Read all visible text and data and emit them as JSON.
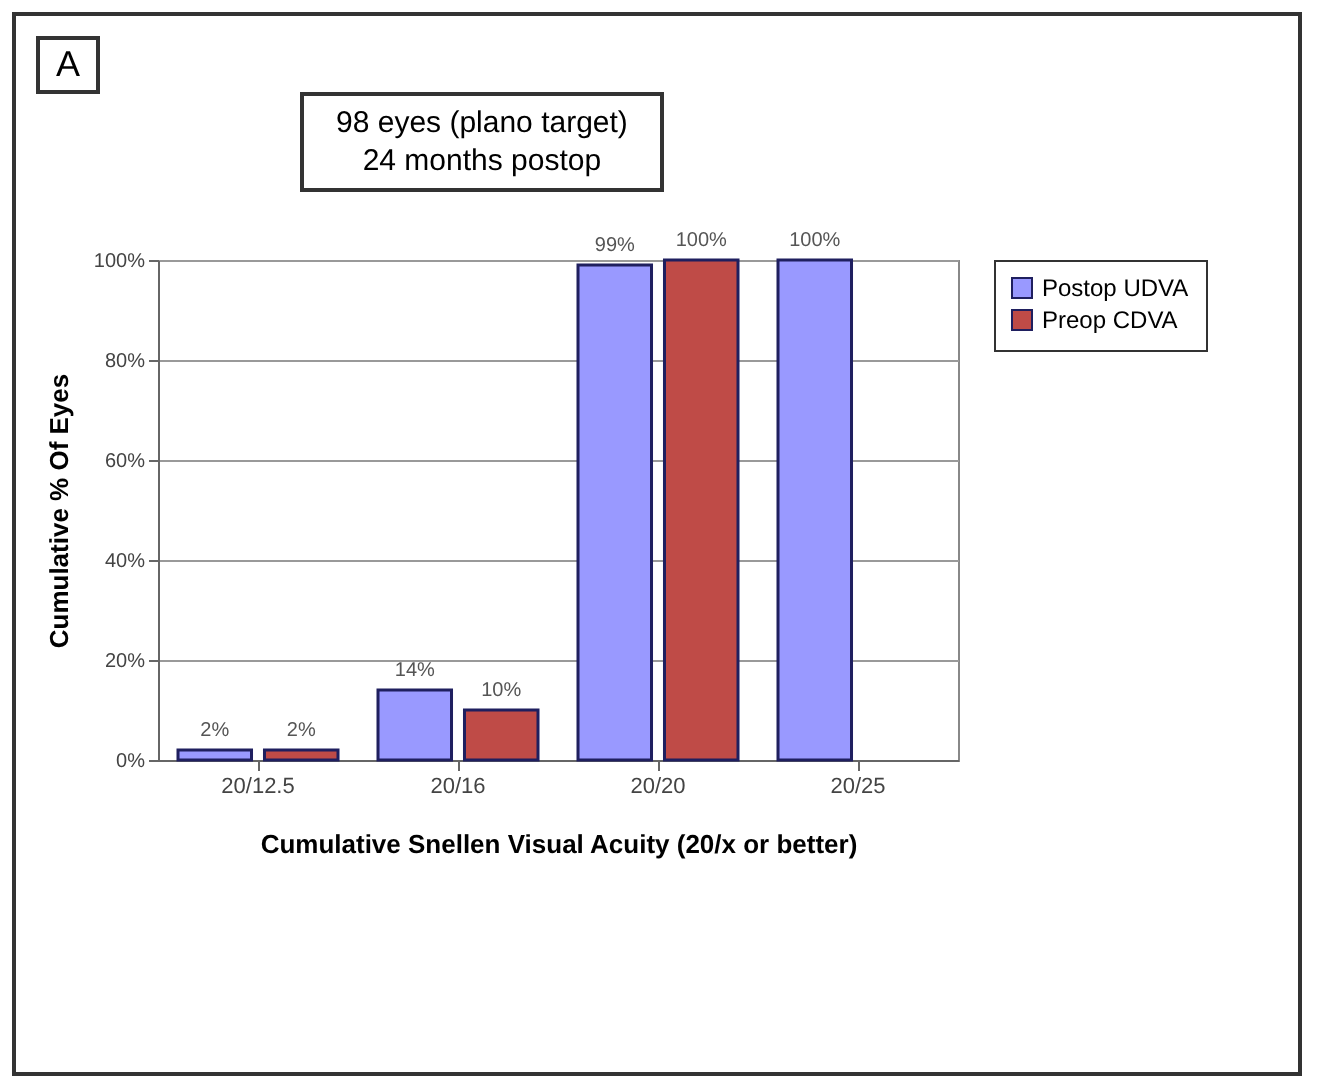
{
  "chart_data": {
    "type": "bar",
    "xlabel": "Cumulative Snellen Visual Acuity (20/x or better)",
    "ylabel": "Cumulative % Of Eyes",
    "annotations": [
      "A",
      "98 eyes (plano target)",
      "24 months postop"
    ],
    "categories": [
      "20/12.5",
      "20/16",
      "20/20",
      "20/25"
    ],
    "series": [
      {
        "name": "Postop UDVA",
        "color": "#9999ff",
        "values": [
          2,
          14,
          99,
          100
        ],
        "value_labels": [
          "2%",
          "14%",
          "99%",
          "100%"
        ]
      },
      {
        "name": "Preop CDVA",
        "color": "#bf4b47",
        "values": [
          2,
          10,
          100,
          null
        ],
        "value_labels": [
          "2%",
          "10%",
          "100%",
          null
        ]
      }
    ],
    "ylim": [
      0,
      100
    ],
    "yticks": [
      {
        "value": 0,
        "label": "0%"
      },
      {
        "value": 20,
        "label": "20%"
      },
      {
        "value": 40,
        "label": "40%"
      },
      {
        "value": 60,
        "label": "60%"
      },
      {
        "value": 80,
        "label": "80%"
      },
      {
        "value": 100,
        "label": "100%"
      }
    ],
    "grid": "y",
    "legend": "right"
  }
}
